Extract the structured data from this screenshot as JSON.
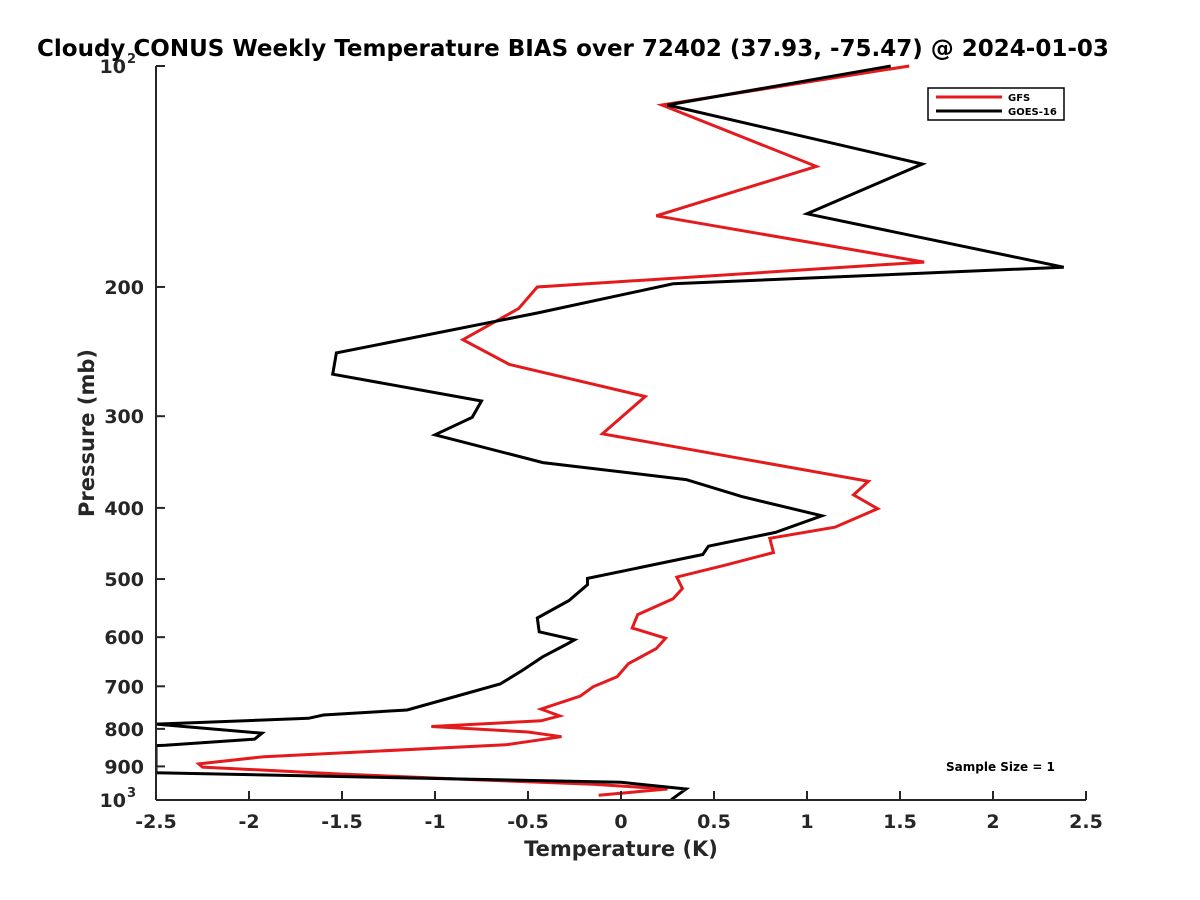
{
  "chart_data": {
    "type": "line",
    "title": "Cloudy CONUS Weekly Temperature BIAS over 72402 (37.93, -75.47) @ 2024-01-03",
    "xlabel": "Temperature (K)",
    "ylabel": "Pressure (mb)",
    "xlim": [
      -2.5,
      2.5
    ],
    "ylim": [
      1000,
      100
    ],
    "y_scale": "log",
    "grid": false,
    "legend_position": "top-right",
    "x_ticks": [
      "-2.5",
      "-2",
      "-1.5",
      "-1",
      "-0.5",
      "0",
      "0.5",
      "1",
      "1.5",
      "2",
      "2.5"
    ],
    "y_ticks": [
      {
        "value": 100,
        "base": "10",
        "exp": "2"
      },
      {
        "value": 200,
        "label": "200"
      },
      {
        "value": 300,
        "label": "300"
      },
      {
        "value": 400,
        "label": "400"
      },
      {
        "value": 500,
        "label": "500"
      },
      {
        "value": 600,
        "label": "600"
      },
      {
        "value": 700,
        "label": "700"
      },
      {
        "value": 800,
        "label": "800"
      },
      {
        "value": 900,
        "label": "900"
      },
      {
        "value": 1000,
        "base": "10",
        "exp": "3"
      }
    ],
    "annotation": "Sample Size = 1",
    "series": [
      {
        "name": "GFS",
        "color": "#e41a1c",
        "points": [
          [
            1.55,
            100
          ],
          [
            0.22,
            113
          ],
          [
            1.05,
            137
          ],
          [
            0.19,
            160
          ],
          [
            1.63,
            185
          ],
          [
            -0.45,
            200
          ],
          [
            -0.55,
            214
          ],
          [
            -0.85,
            236
          ],
          [
            -0.6,
            255
          ],
          [
            0.13,
            282
          ],
          [
            -0.1,
            317
          ],
          [
            1.33,
            368
          ],
          [
            1.25,
            384
          ],
          [
            1.38,
            401
          ],
          [
            1.15,
            425
          ],
          [
            0.8,
            440
          ],
          [
            0.82,
            460
          ],
          [
            0.57,
            478
          ],
          [
            0.3,
            497
          ],
          [
            0.33,
            515
          ],
          [
            0.28,
            532
          ],
          [
            0.09,
            559
          ],
          [
            0.06,
            583
          ],
          [
            0.24,
            602
          ],
          [
            0.19,
            622
          ],
          [
            0.04,
            652
          ],
          [
            -0.02,
            679
          ],
          [
            -0.15,
            701
          ],
          [
            -0.22,
            722
          ],
          [
            -0.43,
            752
          ],
          [
            -0.33,
            768
          ],
          [
            -0.43,
            780
          ],
          [
            -1.02,
            794
          ],
          [
            -0.5,
            808
          ],
          [
            -0.32,
            820
          ],
          [
            -0.62,
            841
          ],
          [
            -1.92,
            873
          ],
          [
            -2.27,
            893
          ],
          [
            -2.25,
            902
          ],
          [
            -1.5,
            922
          ],
          [
            -0.8,
            938
          ],
          [
            -0.15,
            952
          ],
          [
            0.25,
            966
          ],
          [
            -0.12,
            985
          ]
        ]
      },
      {
        "name": "GOES-16",
        "color": "#000000",
        "points": [
          [
            1.45,
            100
          ],
          [
            0.25,
            113
          ],
          [
            1.62,
            136
          ],
          [
            1.0,
            159
          ],
          [
            2.38,
            188
          ],
          [
            0.28,
            198
          ],
          [
            -0.45,
            217
          ],
          [
            -1.53,
            246
          ],
          [
            -1.55,
            263
          ],
          [
            -0.75,
            286
          ],
          [
            -0.8,
            301
          ],
          [
            -1.0,
            318
          ],
          [
            -0.42,
            347
          ],
          [
            0.35,
            366
          ],
          [
            0.65,
            386
          ],
          [
            1.08,
            410
          ],
          [
            0.83,
            432
          ],
          [
            0.47,
            451
          ],
          [
            0.44,
            463
          ],
          [
            -0.18,
            499
          ],
          [
            -0.18,
            509
          ],
          [
            -0.28,
            535
          ],
          [
            -0.45,
            565
          ],
          [
            -0.44,
            590
          ],
          [
            -0.25,
            605
          ],
          [
            -0.3,
            615
          ],
          [
            -0.42,
            638
          ],
          [
            -0.53,
            666
          ],
          [
            -0.65,
            695
          ],
          [
            -0.9,
            724
          ],
          [
            -1.15,
            754
          ],
          [
            -1.6,
            766
          ],
          [
            -1.68,
            774
          ],
          [
            -2.5,
            788
          ],
          [
            -1.93,
            811
          ],
          [
            -1.97,
            826
          ],
          [
            -2.45,
            842
          ],
          [
            -2.5,
            843
          ],
          [
            -2.5,
            918
          ],
          [
            0.0,
            946
          ],
          [
            0.35,
            966
          ],
          [
            0.27,
            999
          ]
        ]
      }
    ]
  }
}
